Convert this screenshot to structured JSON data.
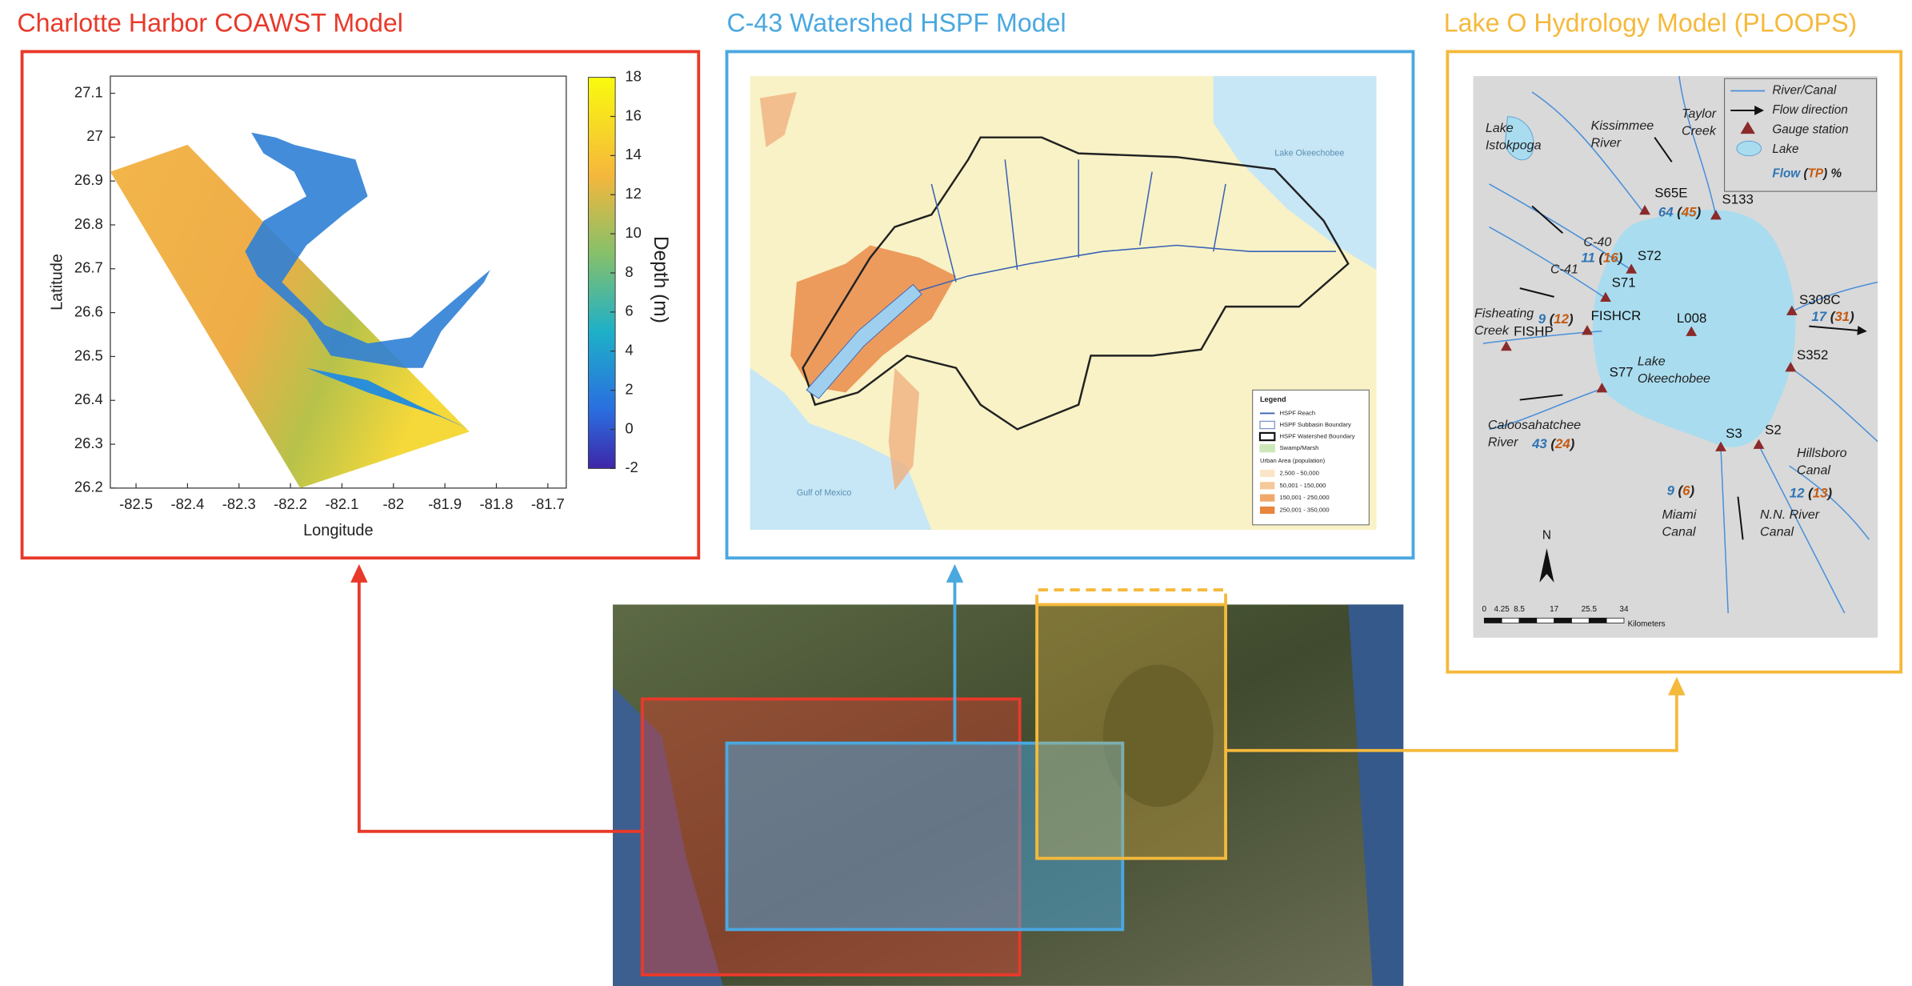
{
  "panels": [
    {
      "title": "Charlotte Harbor COAWST Model",
      "color": "#e8392a",
      "xlabel": "Longitude",
      "ylabel": "Latitude",
      "xticks": [
        -82.5,
        -82.4,
        -82.3,
        -82.2,
        -82.1,
        -82,
        -81.9,
        -81.8,
        -81.7
      ],
      "yticks": [
        27.1,
        27,
        26.9,
        26.8,
        26.7,
        26.6,
        26.5,
        26.4,
        26.3,
        26.2
      ],
      "colorbar_label": "Depth (m)",
      "colorbar_ticks": [
        18,
        16,
        14,
        12,
        10,
        8,
        6,
        4,
        2,
        0,
        -2
      ]
    },
    {
      "title": "C-43 Watershed HSPF Model",
      "color": "#4aa8e0",
      "lake_label": "Lake Okeechobee",
      "gulf_label": "Gulf of Mexico",
      "legend": {
        "title": "Legend",
        "items": [
          "HSPF Reach",
          "HSPF Subbasin Boundary",
          "HSPF Watershed Boundary",
          "Swamp/Marsh"
        ],
        "urban_title": "Urban Area (population)",
        "urban_items": [
          "2,500 - 50,000",
          "50,001 - 150,000",
          "150,001 - 250,000",
          "250,001 - 350,000"
        ]
      }
    },
    {
      "title": "Lake O Hydrology Model (PLOOPS)",
      "color": "#f5b93c",
      "legend": [
        "River/Canal",
        "Flow direction",
        "Gauge station",
        "Lake"
      ],
      "flow_legend": [
        {
          "text": "Flow",
          "color": "#2e75b6"
        },
        {
          "text": " (",
          "color": "#222222"
        },
        {
          "text": "TP",
          "color": "#c55a11"
        },
        {
          "text": ") %",
          "color": "#222222"
        }
      ],
      "places": [
        [
          "Lake",
          "Istokpoga"
        ],
        [
          "Kissimmee",
          "River"
        ],
        [
          "Taylor",
          "Creek"
        ],
        [
          "C-40"
        ],
        [
          "C-41"
        ],
        [
          "Fisheating",
          "Creek"
        ],
        [
          "Lake",
          "Okeechobee"
        ],
        [
          "Caloosahatchee",
          "River"
        ],
        [
          "Hillsboro",
          "Canal"
        ],
        [
          "Miami",
          "Canal"
        ],
        [
          "N.N. River",
          "Canal"
        ]
      ],
      "stations": [
        "S65E",
        "S133",
        "S72",
        "S71",
        "FISHP",
        "FISHCR",
        "L008",
        "S308C",
        "S352",
        "S77",
        "S3",
        "S2"
      ],
      "loads": [
        {
          "flow": 64,
          "tp": 45
        },
        {
          "flow": 11,
          "tp": 16
        },
        {
          "flow": 9,
          "tp": 12
        },
        {
          "flow": 17,
          "tp": 31
        },
        {
          "flow": 43,
          "tp": 24
        },
        {
          "flow": 9,
          "tp": 6
        },
        {
          "flow": 12,
          "tp": 13
        }
      ],
      "brackets": [
        "(",
        ")"
      ],
      "north": "N",
      "scale_ticks": [
        0,
        4.25,
        8.5,
        17,
        25.5,
        34
      ],
      "scale_unit": "Kilometers"
    }
  ]
}
